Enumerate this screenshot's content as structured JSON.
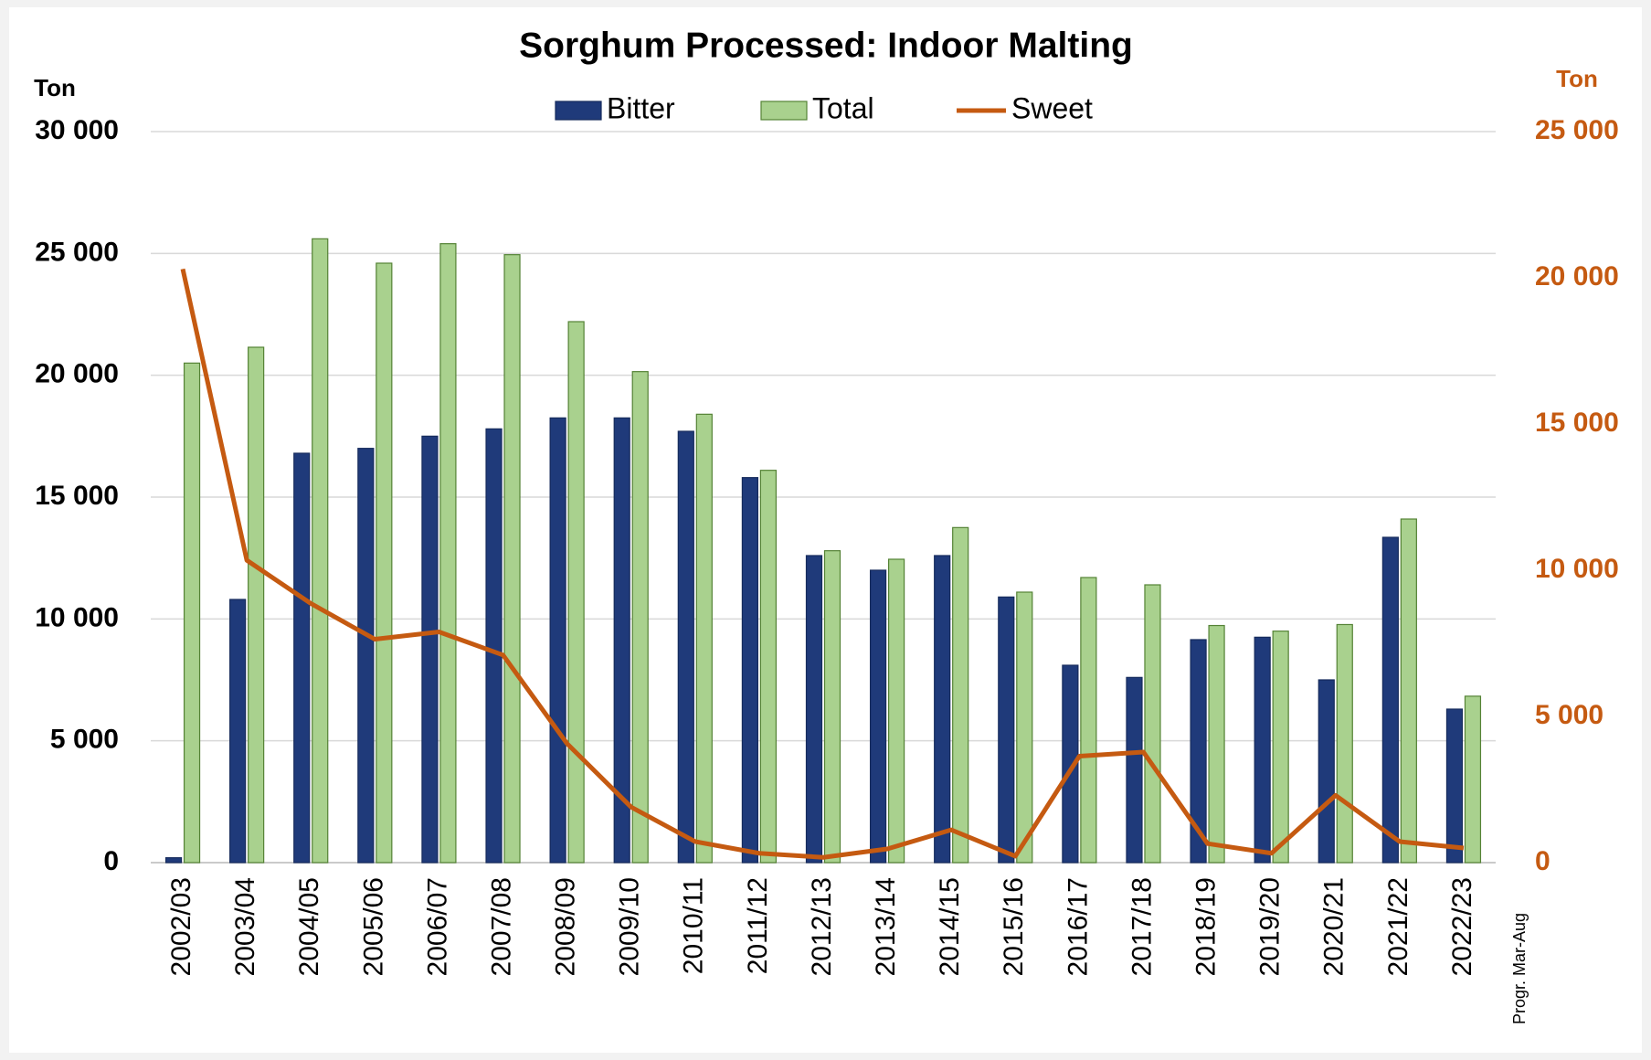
{
  "chart_data": {
    "type": "bar",
    "title": "Sorghum Processed: Indoor Malting",
    "y_label": "Ton",
    "y2_label": "Ton",
    "annotation": "Progr. Mar-Aug",
    "categories": [
      "2002/03",
      "2003/04",
      "2004/05",
      "2005/06",
      "2006/07",
      "2007/08",
      "2008/09",
      "2009/10",
      "2010/11",
      "2011/12",
      "2012/13",
      "2013/14",
      "2014/15",
      "2015/16",
      "2016/17",
      "2017/18",
      "2018/19",
      "2019/20",
      "2020/21",
      "2021/22",
      "2022/23"
    ],
    "series": [
      {
        "name": "Bitter",
        "type": "bar",
        "color": "#1f3a7a",
        "values": [
          200,
          10800,
          16800,
          17000,
          17500,
          17800,
          18250,
          18250,
          17700,
          15800,
          12600,
          12000,
          12600,
          10900,
          8100,
          7600,
          9150,
          9250,
          7500,
          13350,
          6300
        ]
      },
      {
        "name": "Total",
        "type": "bar",
        "color": "#a9d18e",
        "values": [
          20500,
          21150,
          25600,
          24600,
          25400,
          24950,
          22200,
          20150,
          18400,
          16100,
          12800,
          12450,
          13750,
          11100,
          11700,
          11400,
          9730,
          9500,
          9770,
          14100,
          6830
        ]
      },
      {
        "name": "Sweet",
        "type": "line",
        "axis": "y2",
        "color": "#c55a11",
        "values": [
          20300,
          10340,
          8860,
          7640,
          7890,
          7100,
          4070,
          1900,
          720,
          320,
          180,
          470,
          1120,
          220,
          3640,
          3780,
          650,
          320,
          2300,
          720,
          500
        ]
      }
    ],
    "ylim": [
      0,
      30000
    ],
    "yticks": [
      0,
      {
        "value": 5000,
        "label": "5 000"
      },
      {
        "value": 10000,
        "label": "10 000"
      },
      {
        "value": 15000,
        "label": "15 000"
      },
      {
        "value": 20000,
        "label": "20 000"
      },
      {
        "value": 25000,
        "label": "25 000"
      },
      {
        "value": 30000,
        "label": "30 000"
      }
    ],
    "y2lim": [
      0,
      25000
    ],
    "y2ticks": [
      0,
      {
        "value": 5000,
        "label": "5 000"
      },
      {
        "value": 10000,
        "label": "10 000"
      },
      {
        "value": 15000,
        "label": "15 000"
      },
      {
        "value": 20000,
        "label": "20 000"
      },
      {
        "value": 25000,
        "label": "25 000"
      }
    ],
    "y2_color": "#c55a11",
    "grid": true,
    "legend": "top"
  }
}
